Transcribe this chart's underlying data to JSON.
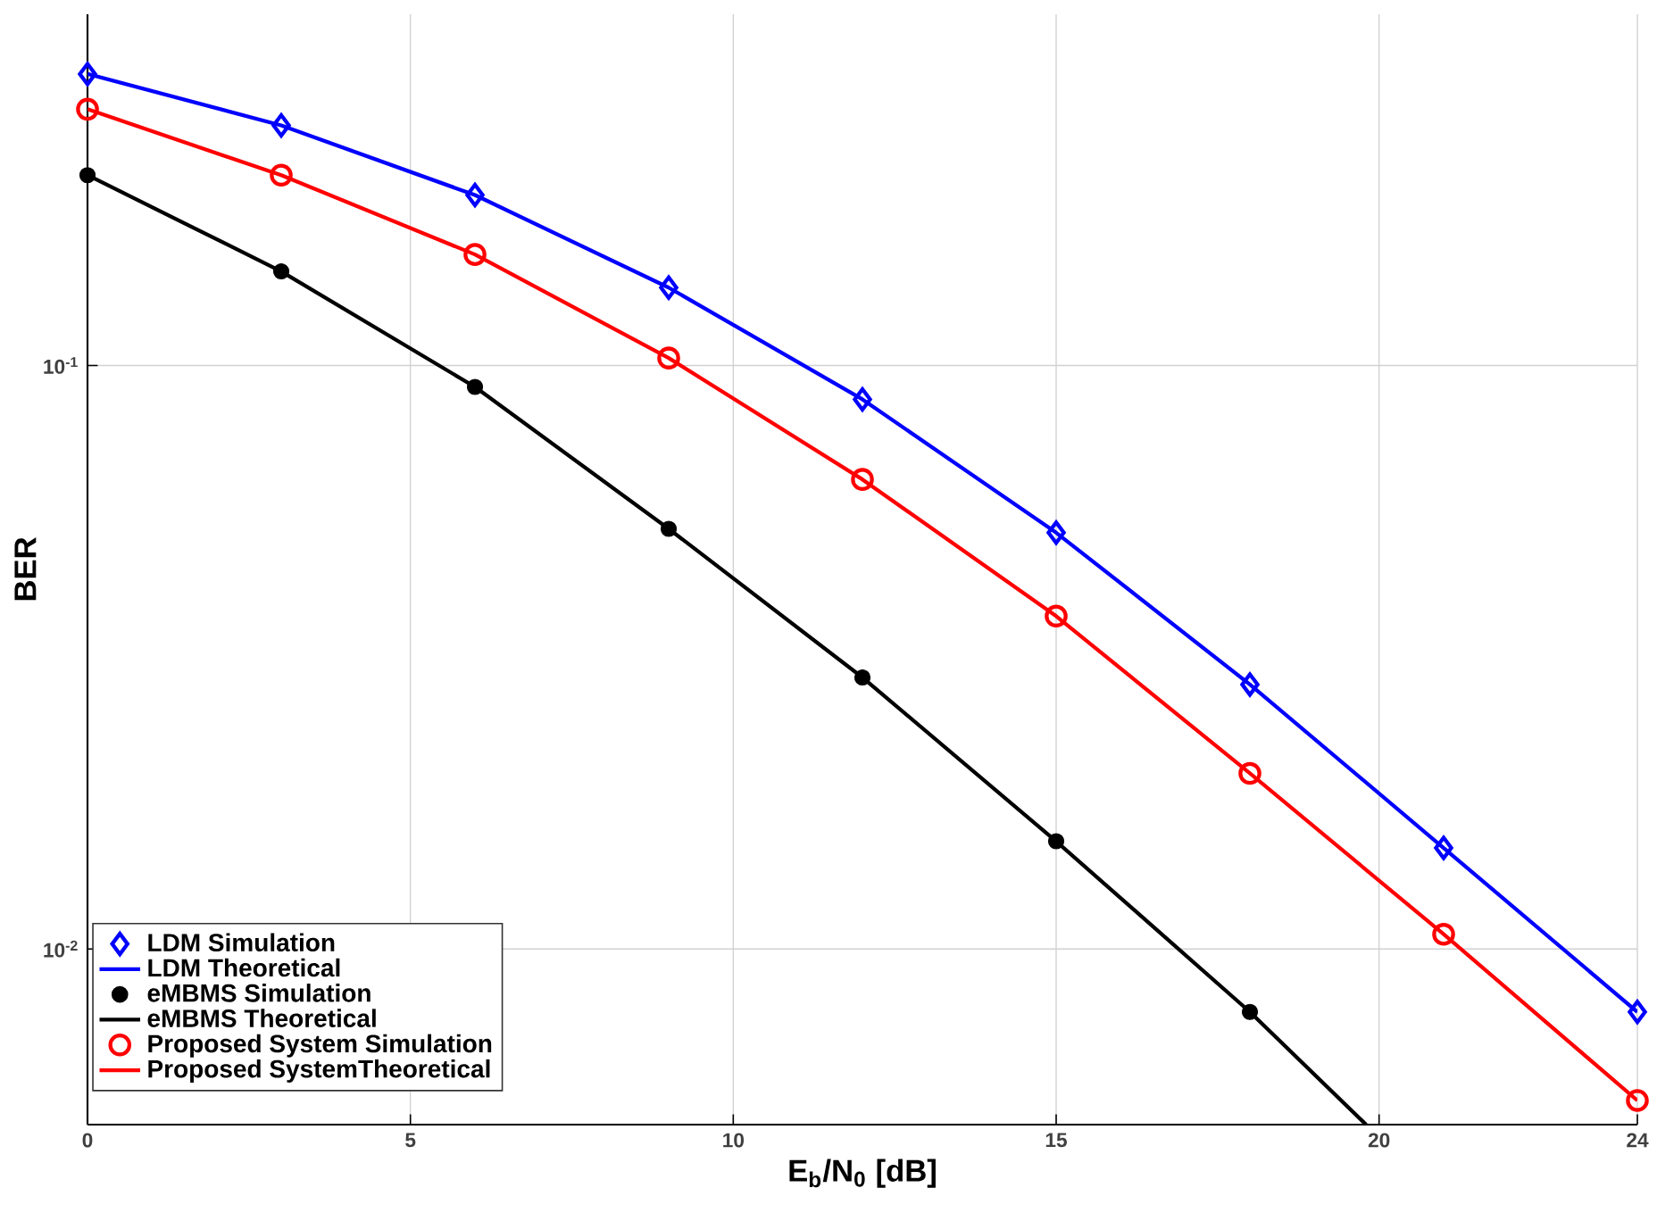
{
  "chart_data": {
    "type": "line",
    "xlabel": "E$_{b}$/N$_{0}$ [dB]",
    "ylabel": "BER",
    "log": "y",
    "grid": true,
    "legend": "bottom left",
    "xlim": [
      0,
      24
    ],
    "xticks": [
      0,
      5,
      10,
      15,
      20,
      24
    ],
    "ylim": [
      0.005,
      0.4
    ],
    "yticks": [
      {
        "value": 0.1,
        "label": "10$^{-1}$"
      },
      {
        "value": 0.01,
        "label": "10$^{-2}$"
      }
    ],
    "series": [
      {
        "name": "LDM Simulation",
        "type": "scatter",
        "marker": "diamond",
        "color": "#0000ff",
        "x": [
          0,
          3,
          6,
          9,
          12,
          15,
          18,
          21,
          24
        ],
        "values": [
          0.316,
          0.258,
          0.196,
          0.136,
          0.0875,
          0.0517,
          0.0284,
          0.0149,
          0.0078
        ]
      },
      {
        "name": "LDM Theoretical",
        "color": "#0000ff",
        "x": [
          0,
          3,
          6,
          9,
          12,
          15,
          18,
          21,
          24
        ],
        "values": [
          0.316,
          0.258,
          0.196,
          0.136,
          0.0875,
          0.0517,
          0.0284,
          0.0149,
          0.0078
        ]
      },
      {
        "name": "eMBMS Simulation",
        "type": "scatter",
        "marker": "circle",
        "color": "#000000",
        "x": [
          0,
          3,
          6,
          9,
          12,
          15,
          18
        ],
        "values": [
          0.212,
          0.145,
          0.0919,
          0.0525,
          0.0292,
          0.0153,
          0.0078
        ]
      },
      {
        "name": "eMBMS Theoretical",
        "color": "#000000",
        "x": [
          0,
          3,
          6,
          9,
          12,
          15,
          18,
          19.8
        ],
        "values": [
          0.212,
          0.145,
          0.0919,
          0.0525,
          0.0292,
          0.0153,
          0.0078,
          0.005
        ]
      },
      {
        "name": "Proposed System Simulation",
        "type": "scatter",
        "marker": "circle",
        "color": "#ff0000",
        "x": [
          0,
          3,
          6,
          9,
          12,
          15,
          18,
          21,
          24
        ],
        "values": [
          0.275,
          0.212,
          0.155,
          0.103,
          0.0638,
          0.0372,
          0.02,
          0.0106,
          0.0055
        ]
      },
      {
        "name": "Proposed SystemTheoretical",
        "color": "#ff0000",
        "x": [
          0,
          3,
          6,
          9,
          12,
          15,
          18,
          21,
          24
        ],
        "values": [
          0.275,
          0.212,
          0.155,
          0.103,
          0.0638,
          0.0372,
          0.02,
          0.0106,
          0.0055
        ]
      }
    ]
  }
}
